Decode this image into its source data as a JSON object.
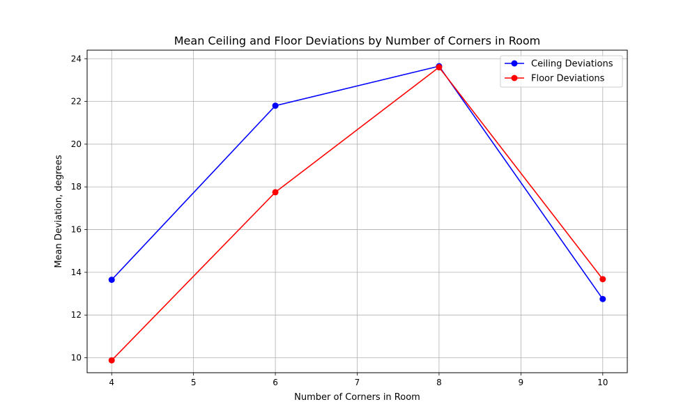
{
  "chart_data": {
    "type": "line",
    "title": "Mean Ceiling and Floor Deviations by Number of Corners in Room",
    "xlabel": "Number of Corners in Room",
    "ylabel": "Mean Deviation, degrees",
    "xlim": [
      3.7,
      10.3
    ],
    "ylim": [
      9.3,
      24.4
    ],
    "xticks": [
      4,
      5,
      6,
      7,
      8,
      9,
      10
    ],
    "yticks": [
      10,
      12,
      14,
      16,
      18,
      20,
      22,
      24
    ],
    "grid": true,
    "legend_position": "top-right",
    "x": [
      4,
      6,
      8,
      10
    ],
    "series": [
      {
        "name": "Ceiling Deviations",
        "color": "#0000ff",
        "values": [
          13.65,
          21.8,
          23.65,
          12.75
        ]
      },
      {
        "name": "Floor Deviations",
        "color": "#ff0000",
        "values": [
          9.88,
          17.75,
          23.6,
          13.68
        ]
      }
    ]
  }
}
